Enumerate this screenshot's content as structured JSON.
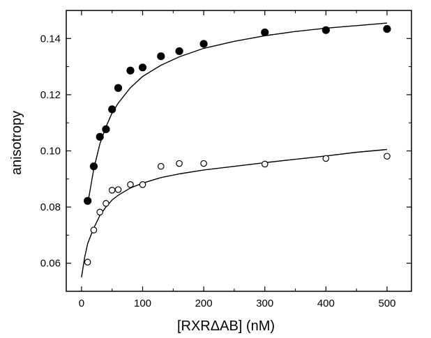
{
  "chart_data": {
    "type": "scatter",
    "xlabel": "[RXRΔAB] (nM)",
    "ylabel": "anisotropy",
    "xlim": [
      -25,
      540
    ],
    "ylim": [
      0.05,
      0.15
    ],
    "x_ticks": [
      0,
      100,
      200,
      300,
      400,
      500
    ],
    "x_tick_labels": [
      "0",
      "100",
      "200",
      "300",
      "400",
      "500"
    ],
    "y_ticks": [
      0.06,
      0.08,
      0.1,
      0.12,
      0.14
    ],
    "y_tick_labels": [
      "0.06",
      "0.08",
      "0.10",
      "0.12",
      "0.14"
    ],
    "grid": false,
    "legend": "none",
    "series": [
      {
        "marker": "filled-circle",
        "points": [
          {
            "x": 10,
            "y": 0.0822
          },
          {
            "x": 20,
            "y": 0.0945
          },
          {
            "x": 30,
            "y": 0.105
          },
          {
            "x": 40,
            "y": 0.1077
          },
          {
            "x": 50,
            "y": 0.1148
          },
          {
            "x": 60,
            "y": 0.1224
          },
          {
            "x": 80,
            "y": 0.1286
          },
          {
            "x": 100,
            "y": 0.1297
          },
          {
            "x": 130,
            "y": 0.1337
          },
          {
            "x": 160,
            "y": 0.1355
          },
          {
            "x": 200,
            "y": 0.1381
          },
          {
            "x": 300,
            "y": 0.1422
          },
          {
            "x": 400,
            "y": 0.143
          },
          {
            "x": 500,
            "y": 0.1434
          }
        ],
        "fit_curve": [
          {
            "x": 10,
            "y": 0.081
          },
          {
            "x": 20,
            "y": 0.0935
          },
          {
            "x": 30,
            "y": 0.1025
          },
          {
            "x": 40,
            "y": 0.1085
          },
          {
            "x": 50,
            "y": 0.1135
          },
          {
            "x": 60,
            "y": 0.117
          },
          {
            "x": 80,
            "y": 0.1225
          },
          {
            "x": 100,
            "y": 0.1265
          },
          {
            "x": 130,
            "y": 0.1305
          },
          {
            "x": 160,
            "y": 0.1335
          },
          {
            "x": 200,
            "y": 0.1365
          },
          {
            "x": 250,
            "y": 0.139
          },
          {
            "x": 300,
            "y": 0.141
          },
          {
            "x": 350,
            "y": 0.1425
          },
          {
            "x": 400,
            "y": 0.1437
          },
          {
            "x": 450,
            "y": 0.1446
          },
          {
            "x": 500,
            "y": 0.1455
          }
        ]
      },
      {
        "marker": "open-circle",
        "points": [
          {
            "x": 10,
            "y": 0.0604
          },
          {
            "x": 20,
            "y": 0.0718
          },
          {
            "x": 30,
            "y": 0.0782
          },
          {
            "x": 40,
            "y": 0.0813
          },
          {
            "x": 50,
            "y": 0.086
          },
          {
            "x": 60,
            "y": 0.0862
          },
          {
            "x": 80,
            "y": 0.088
          },
          {
            "x": 100,
            "y": 0.088
          },
          {
            "x": 130,
            "y": 0.0945
          },
          {
            "x": 160,
            "y": 0.0955
          },
          {
            "x": 200,
            "y": 0.0955
          },
          {
            "x": 300,
            "y": 0.0953
          },
          {
            "x": 400,
            "y": 0.0973
          },
          {
            "x": 500,
            "y": 0.0981
          }
        ],
        "fit_curve": [
          {
            "x": 0,
            "y": 0.055
          },
          {
            "x": 5,
            "y": 0.062
          },
          {
            "x": 10,
            "y": 0.067
          },
          {
            "x": 20,
            "y": 0.0725
          },
          {
            "x": 30,
            "y": 0.077
          },
          {
            "x": 40,
            "y": 0.08
          },
          {
            "x": 50,
            "y": 0.0825
          },
          {
            "x": 60,
            "y": 0.0842
          },
          {
            "x": 80,
            "y": 0.0868
          },
          {
            "x": 100,
            "y": 0.0885
          },
          {
            "x": 130,
            "y": 0.0905
          },
          {
            "x": 160,
            "y": 0.0918
          },
          {
            "x": 200,
            "y": 0.0932
          },
          {
            "x": 250,
            "y": 0.0945
          },
          {
            "x": 300,
            "y": 0.0958
          },
          {
            "x": 350,
            "y": 0.097
          },
          {
            "x": 400,
            "y": 0.0982
          },
          {
            "x": 450,
            "y": 0.0995
          },
          {
            "x": 500,
            "y": 0.1005
          }
        ]
      }
    ]
  }
}
